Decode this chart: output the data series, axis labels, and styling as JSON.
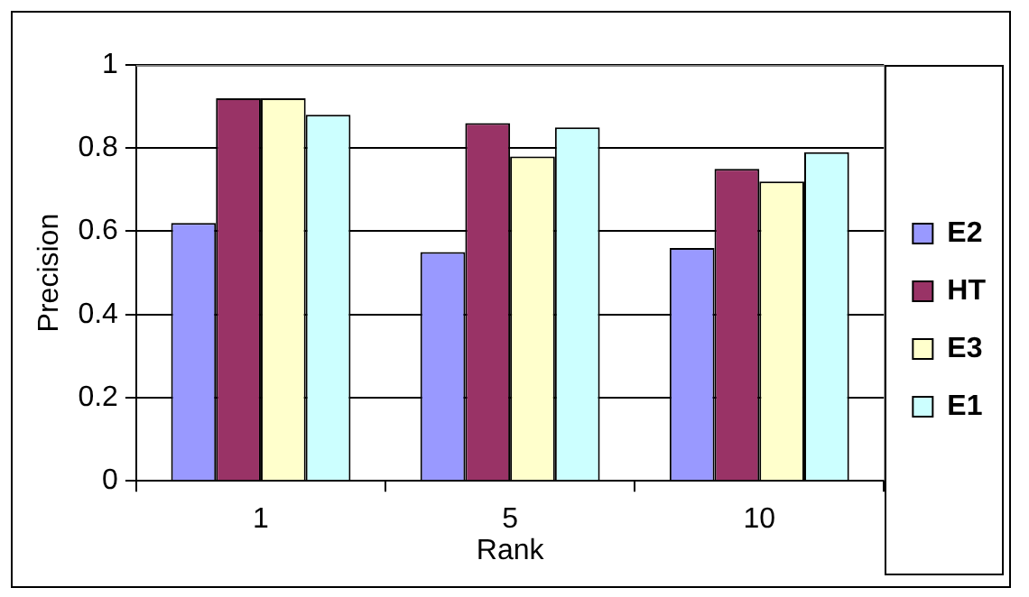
{
  "chart_data": {
    "type": "bar",
    "xlabel": "Rank",
    "ylabel": "Precision",
    "categories": [
      "1",
      "5",
      "10"
    ],
    "series": [
      {
        "name": "E2",
        "color": "#9999ff",
        "values": [
          0.62,
          0.55,
          0.56
        ]
      },
      {
        "name": "HT",
        "color": "#993366",
        "values": [
          0.92,
          0.86,
          0.75
        ]
      },
      {
        "name": "E3",
        "color": "#ffffcc",
        "values": [
          0.92,
          0.78,
          0.72
        ]
      },
      {
        "name": "E1",
        "color": "#ccffff",
        "values": [
          0.88,
          0.85,
          0.79
        ]
      }
    ],
    "ylim": [
      0,
      1
    ],
    "yticks": [
      0,
      0.2,
      0.4,
      0.6,
      0.8,
      1
    ],
    "grid": "y",
    "legend": "right"
  }
}
